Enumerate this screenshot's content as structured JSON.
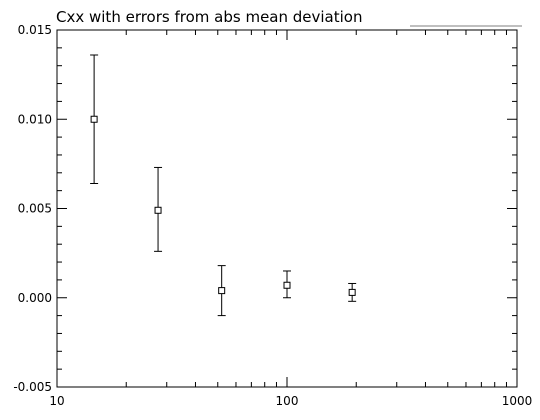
{
  "chart_data": {
    "type": "scatter",
    "title": "Cxx with errors from abs mean deviation",
    "xscale": "log",
    "xlim": [
      10,
      1000
    ],
    "ylim": [
      -0.005,
      0.015
    ],
    "x_tick_labels": [
      "10",
      "100",
      "1000"
    ],
    "y_tick_labels": [
      "-0.005",
      "0.000",
      "0.005",
      "0.010",
      "0.015"
    ],
    "points": [
      {
        "x": 14.5,
        "y": 0.01,
        "err_low": 0.0064,
        "err_high": 0.0136
      },
      {
        "x": 27.5,
        "y": 0.0049,
        "err_low": 0.0026,
        "err_high": 0.0073
      },
      {
        "x": 52.0,
        "y": 0.0004,
        "err_low": -0.001,
        "err_high": 0.0018
      },
      {
        "x": 100.0,
        "y": 0.0007,
        "err_low": 0.0,
        "err_high": 0.0015
      },
      {
        "x": 192.0,
        "y": 0.0003,
        "err_low": -0.0002,
        "err_high": 0.0008
      }
    ],
    "marker": "open-square",
    "grid": false,
    "color": "#000000"
  }
}
